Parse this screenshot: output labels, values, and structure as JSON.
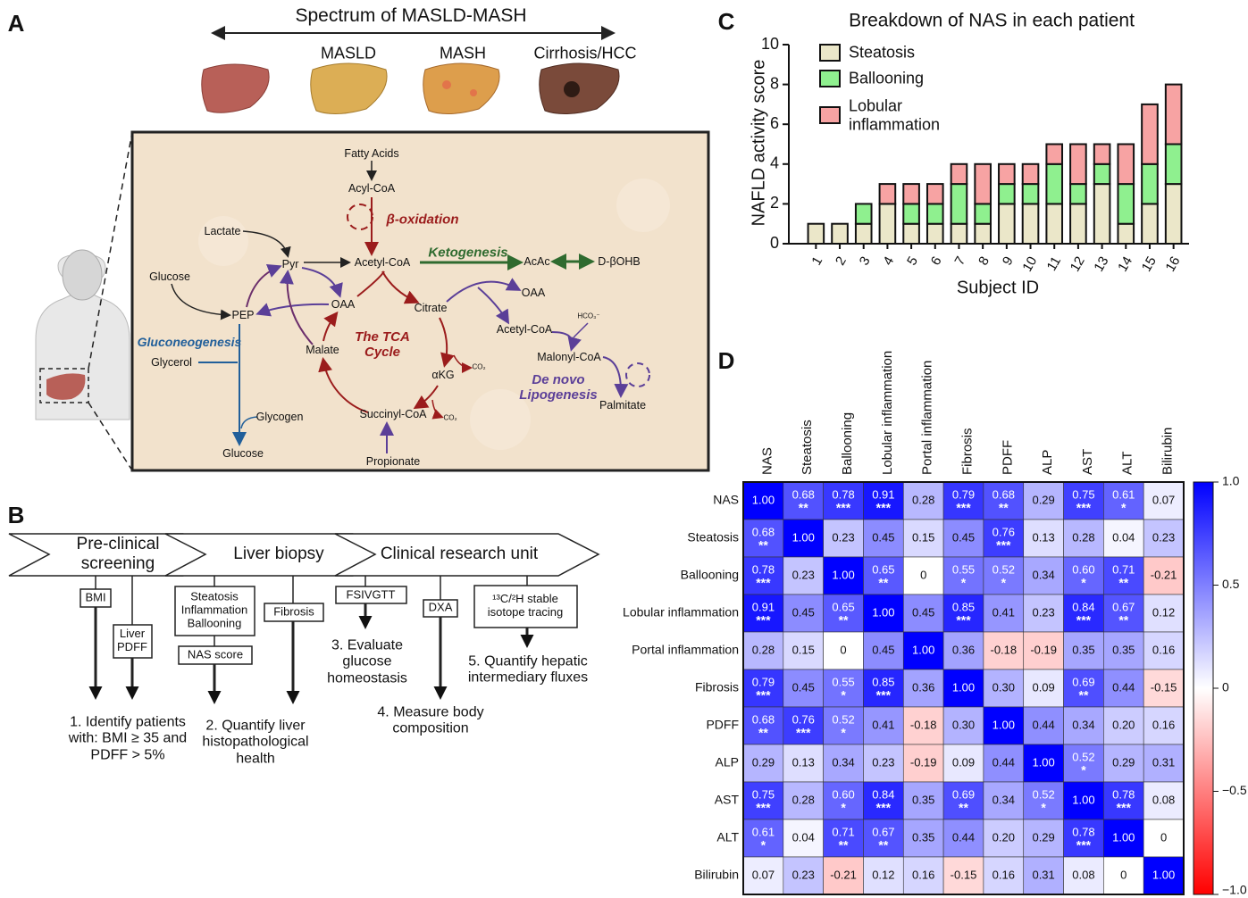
{
  "panel_labels": [
    "A",
    "B",
    "C",
    "D"
  ],
  "panel_a": {
    "title": "Spectrum of MASLD-MASH",
    "stages": [
      "MASLD",
      "MASH",
      "Cirrhosis/HCC"
    ],
    "pathway": [
      "Fatty Acids",
      "Acyl-CoA",
      "β-oxidation",
      "Lactate",
      "Pyr",
      "Acetyl-CoA",
      "Ketogenesis",
      "AcAc",
      "D-βOHB",
      "Glucose",
      "PEP",
      "OAA",
      "Citrate",
      "OAA",
      "Gluconeogenesis",
      "Glycerol",
      "Malate",
      "The TCA Cycle",
      "Acetyl-CoA",
      "HCO₃⁻",
      "Malonyl-CoA",
      "De novo Lipogenesis",
      "αKG",
      "CO₂",
      "CO₂",
      "Glycogen",
      "Glucose",
      "Succinyl-CoA",
      "Propionate",
      "Palmitate"
    ]
  },
  "panel_b": {
    "steps": [
      "Pre-clinical screening",
      "Liver biopsy",
      "Clinical research unit"
    ],
    "measures": [
      "BMI",
      "Liver PDFF",
      "Steatosis Inflammation Ballooning",
      "NAS score",
      "Fibrosis",
      "FSIVGTT",
      "DXA",
      "¹³C/²H stable isotope tracing"
    ],
    "outcomes": [
      "1. Identify patients with: BMI ≥ 35 and PDFF > 5%",
      "2. Quantify liver histopathological health",
      "3. Evaluate glucose homeostasis",
      "4. Measure body composition",
      "5. Quantify hepatic intermediary fluxes"
    ]
  },
  "chart_data": [
    {
      "type": "bar",
      "stacked": true,
      "title": "Breakdown of NAS in each patient",
      "x_label": "Subject ID",
      "y_label": "NAFLD activity score",
      "categories": [
        "1",
        "2",
        "3",
        "4",
        "5",
        "6",
        "7",
        "8",
        "9",
        "10",
        "11",
        "12",
        "13",
        "14",
        "15",
        "16"
      ],
      "series": [
        {
          "name": "Steatosis",
          "color": "#ebe7c9",
          "values": [
            1,
            1,
            1,
            2,
            1,
            1,
            1,
            1,
            2,
            2,
            2,
            2,
            3,
            1,
            2,
            3
          ]
        },
        {
          "name": "Ballooning",
          "color": "#8ff08f",
          "values": [
            0,
            0,
            1,
            0,
            1,
            1,
            2,
            1,
            1,
            1,
            2,
            1,
            1,
            2,
            2,
            2
          ]
        },
        {
          "name": "Lobular inflammation",
          "color": "#f7a3a3",
          "values": [
            0,
            0,
            0,
            1,
            1,
            1,
            1,
            2,
            1,
            1,
            1,
            2,
            1,
            2,
            3,
            3
          ]
        }
      ],
      "ylim": [
        0,
        10
      ],
      "yticks": [
        0,
        2,
        4,
        6,
        8,
        10
      ],
      "grid": false,
      "legend": "top-left"
    },
    {
      "type": "heatmap",
      "columns": [
        "NAS",
        "Steatosis",
        "Ballooning",
        "Lobular inflammation",
        "Portal inflammation",
        "Fibrosis",
        "PDFF",
        "ALP",
        "AST",
        "ALT",
        "Bilirubin"
      ],
      "rows": [
        "NAS",
        "Steatosis",
        "Ballooning",
        "Lobular inflammation",
        "Portal inflammation",
        "Fibrosis",
        "PDFF",
        "ALP",
        "AST",
        "ALT",
        "Bilirubin"
      ],
      "values": [
        [
          1,
          0.68,
          0.78,
          0.91,
          0.28,
          0.79,
          0.68,
          0.29,
          0.75,
          0.61,
          0.07
        ],
        [
          0.68,
          1,
          0.23,
          0.45,
          0.15,
          0.45,
          0.76,
          0.13,
          0.28,
          0.04,
          0.23
        ],
        [
          0.78,
          0.23,
          1,
          0.65,
          0,
          0.55,
          0.52,
          0.34,
          0.6,
          0.71,
          -0.21
        ],
        [
          0.91,
          0.45,
          0.65,
          1,
          0.45,
          0.85,
          0.41,
          0.23,
          0.84,
          0.67,
          0.12
        ],
        [
          0.28,
          0.15,
          0,
          0.45,
          1,
          0.36,
          -0.18,
          -0.19,
          0.35,
          0.35,
          0.16
        ],
        [
          0.79,
          0.45,
          0.55,
          0.85,
          0.36,
          1,
          0.3,
          0.09,
          0.69,
          0.44,
          -0.15
        ],
        [
          0.68,
          0.76,
          0.52,
          0.41,
          -0.18,
          0.3,
          1,
          0.44,
          0.34,
          0.2,
          0.16
        ],
        [
          0.29,
          0.13,
          0.34,
          0.23,
          -0.19,
          0.09,
          0.44,
          1,
          0.52,
          0.29,
          0.31
        ],
        [
          0.75,
          0.28,
          0.6,
          0.84,
          0.35,
          0.69,
          0.34,
          0.52,
          1,
          0.78,
          0.08
        ],
        [
          0.61,
          0.04,
          0.71,
          0.67,
          0.35,
          0.44,
          0.2,
          0.29,
          0.78,
          1,
          0
        ],
        [
          0.07,
          0.23,
          -0.21,
          0.12,
          0.16,
          -0.15,
          0.16,
          0.31,
          0.08,
          0,
          1
        ]
      ],
      "value_labels": [
        [
          "1.00",
          "0.68",
          "0.78",
          "0.91",
          "0.28",
          "0.79",
          "0.68",
          "0.29",
          "0.75",
          "0.61",
          "0.07"
        ],
        [
          "0.68",
          "1.00",
          "0.23",
          "0.45",
          "0.15",
          "0.45",
          "0.76",
          "0.13",
          "0.28",
          "0.04",
          "0.23"
        ],
        [
          "0.78",
          "0.23",
          "1.00",
          "0.65",
          "0",
          "0.55",
          "0.52",
          "0.34",
          "0.60",
          "0.71",
          "-0.21"
        ],
        [
          "0.91",
          "0.45",
          "0.65",
          "1.00",
          "0.45",
          "0.85",
          "0.41",
          "0.23",
          "0.84",
          "0.67",
          "0.12"
        ],
        [
          "0.28",
          "0.15",
          "0",
          "0.45",
          "1.00",
          "0.36",
          "-0.18",
          "-0.19",
          "0.35",
          "0.35",
          "0.16"
        ],
        [
          "0.79",
          "0.45",
          "0.55",
          "0.85",
          "0.36",
          "1.00",
          "0.30",
          "0.09",
          "0.69",
          "0.44",
          "-0.15"
        ],
        [
          "0.68",
          "0.76",
          "0.52",
          "0.41",
          "-0.18",
          "0.30",
          "1.00",
          "0.44",
          "0.34",
          "0.20",
          "0.16"
        ],
        [
          "0.29",
          "0.13",
          "0.34",
          "0.23",
          "-0.19",
          "0.09",
          "0.44",
          "1.00",
          "0.52",
          "0.29",
          "0.31"
        ],
        [
          "0.75",
          "0.28",
          "0.60",
          "0.84",
          "0.35",
          "0.69",
          "0.34",
          "0.52",
          "1.00",
          "0.78",
          "0.08"
        ],
        [
          "0.61",
          "0.04",
          "0.71",
          "0.67",
          "0.35",
          "0.44",
          "0.20",
          "0.29",
          "0.78",
          "1.00",
          "0"
        ],
        [
          "0.07",
          "0.23",
          "-0.21",
          "0.12",
          "0.16",
          "-0.15",
          "0.16",
          "0.31",
          "0.08",
          "0",
          "1.00"
        ]
      ],
      "stars": [
        [
          null,
          "**",
          "***",
          "***",
          null,
          "***",
          "**",
          null,
          "***",
          "*",
          null
        ],
        [
          "**",
          null,
          null,
          null,
          null,
          null,
          "***",
          null,
          null,
          null,
          null
        ],
        [
          "***",
          null,
          null,
          "**",
          null,
          "*",
          "*",
          null,
          "*",
          "**",
          null
        ],
        [
          "***",
          null,
          "**",
          null,
          null,
          "***",
          null,
          null,
          "***",
          "**",
          null
        ],
        [
          null,
          null,
          null,
          null,
          null,
          null,
          null,
          null,
          null,
          null,
          null
        ],
        [
          "***",
          null,
          "*",
          "***",
          null,
          null,
          null,
          null,
          "**",
          null,
          null
        ],
        [
          "**",
          "***",
          "*",
          null,
          null,
          null,
          null,
          null,
          null,
          null,
          null
        ],
        [
          null,
          null,
          null,
          null,
          null,
          null,
          null,
          null,
          "*",
          null,
          null
        ],
        [
          "***",
          null,
          "*",
          "***",
          null,
          "**",
          null,
          "*",
          null,
          "***",
          null
        ],
        [
          "*",
          null,
          "**",
          "**",
          null,
          null,
          null,
          null,
          "***",
          null,
          null
        ],
        [
          null,
          null,
          null,
          null,
          null,
          null,
          null,
          null,
          null,
          null,
          null
        ]
      ],
      "colors": [
        "#ff0000",
        "#ffffff",
        "#0000ff"
      ],
      "zlim": [
        -1,
        1
      ],
      "zticks": [
        {
          "value": 1,
          "label": "1.0"
        },
        0.5,
        0,
        {
          "value": -0.5,
          "label": "−0.5"
        },
        {
          "value": -1,
          "label": "−1.0"
        }
      ]
    }
  ]
}
